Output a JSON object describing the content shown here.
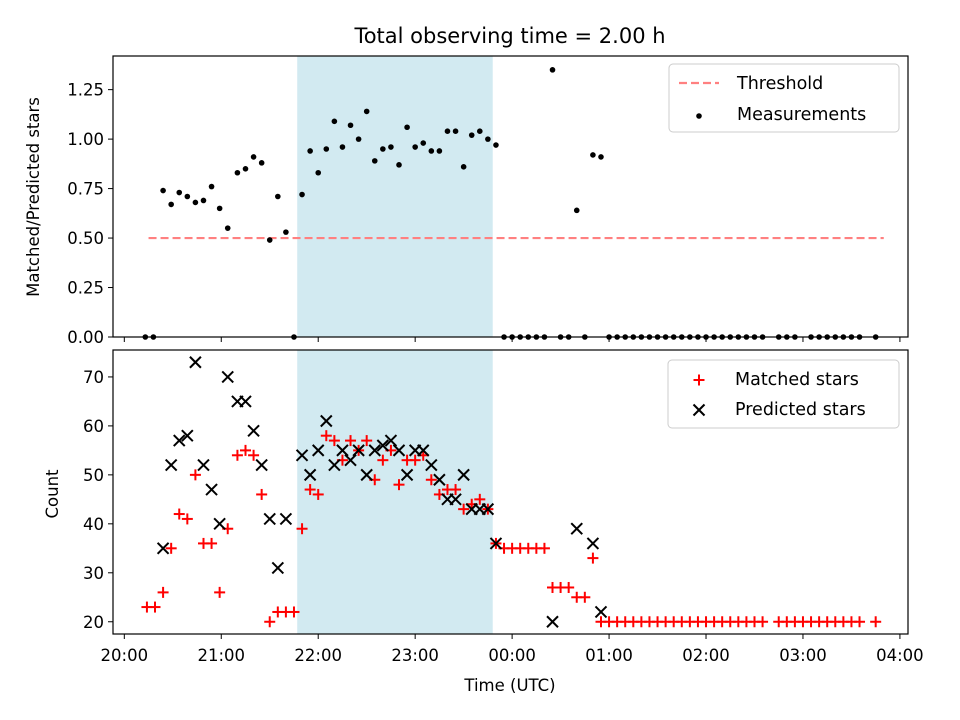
{
  "title": "Total observing time = 2.00 h",
  "colors": {
    "threshold": "#ff8080",
    "measurement": "#000000",
    "matched": "#ff0000",
    "predicted": "#000000",
    "window": "#add8e6"
  },
  "chart_data": [
    {
      "type": "scatter",
      "panel": "top",
      "ylabel": "Matched/Predicted stars",
      "xlabel": "",
      "xlim": [
        "20:00",
        "04:00"
      ],
      "ylim": [
        0,
        1.42
      ],
      "y_ticks": [
        "0.00",
        "0.25",
        "0.50",
        "0.75",
        "1.00",
        "1.25"
      ],
      "highlight_window": [
        "21:47",
        "23:48"
      ],
      "legend_position": "top-right",
      "legend": {
        "threshold": "Threshold",
        "measurements": "Measurements"
      },
      "threshold": {
        "name": "Threshold",
        "value": 0.5,
        "x_range": [
          "20:15",
          "03:50"
        ]
      },
      "series": [
        {
          "name": "Measurements",
          "points": [
            [
              "20:13",
              0
            ],
            [
              "20:18",
              0
            ],
            [
              "20:24",
              0.74
            ],
            [
              "20:29",
              0.67
            ],
            [
              "20:34",
              0.73
            ],
            [
              "20:39",
              0.71
            ],
            [
              "20:44",
              0.68
            ],
            [
              "20:49",
              0.69
            ],
            [
              "20:54",
              0.76
            ],
            [
              "20:59",
              0.65
            ],
            [
              "21:04",
              0.55
            ],
            [
              "21:10",
              0.83
            ],
            [
              "21:15",
              0.85
            ],
            [
              "21:20",
              0.91
            ],
            [
              "21:25",
              0.88
            ],
            [
              "21:30",
              0.49
            ],
            [
              "21:35",
              0.71
            ],
            [
              "21:40",
              0.53
            ],
            [
              "21:45",
              0
            ],
            [
              "21:50",
              0.72
            ],
            [
              "21:55",
              0.94
            ],
            [
              "22:00",
              0.83
            ],
            [
              "22:05",
              0.95
            ],
            [
              "22:10",
              1.09
            ],
            [
              "22:15",
              0.96
            ],
            [
              "22:20",
              1.07
            ],
            [
              "22:25",
              1.0
            ],
            [
              "22:30",
              1.14
            ],
            [
              "22:35",
              0.89
            ],
            [
              "22:40",
              0.95
            ],
            [
              "22:45",
              0.96
            ],
            [
              "22:50",
              0.87
            ],
            [
              "22:55",
              1.06
            ],
            [
              "23:00",
              0.96
            ],
            [
              "23:05",
              0.98
            ],
            [
              "23:10",
              0.94
            ],
            [
              "23:15",
              0.94
            ],
            [
              "23:20",
              1.04
            ],
            [
              "23:25",
              1.04
            ],
            [
              "23:30",
              0.86
            ],
            [
              "23:35",
              1.02
            ],
            [
              "23:40",
              1.04
            ],
            [
              "23:45",
              1.0
            ],
            [
              "23:50",
              0.97
            ],
            [
              "23:55",
              0
            ],
            [
              "00:00",
              0
            ],
            [
              "00:05",
              0
            ],
            [
              "00:10",
              0
            ],
            [
              "00:15",
              0
            ],
            [
              "00:20",
              0
            ],
            [
              "00:25",
              1.35
            ],
            [
              "00:30",
              0
            ],
            [
              "00:35",
              0
            ],
            [
              "00:40",
              0.64
            ],
            [
              "00:45",
              0
            ],
            [
              "00:50",
              0.92
            ],
            [
              "00:55",
              0.91
            ],
            [
              "01:00",
              0
            ],
            [
              "01:05",
              0
            ],
            [
              "01:10",
              0
            ],
            [
              "01:15",
              0
            ],
            [
              "01:20",
              0
            ],
            [
              "01:25",
              0
            ],
            [
              "01:30",
              0
            ],
            [
              "01:35",
              0
            ],
            [
              "01:40",
              0
            ],
            [
              "01:45",
              0
            ],
            [
              "01:50",
              0
            ],
            [
              "01:55",
              0
            ],
            [
              "02:00",
              0
            ],
            [
              "02:05",
              0
            ],
            [
              "02:10",
              0
            ],
            [
              "02:15",
              0
            ],
            [
              "02:20",
              0
            ],
            [
              "02:25",
              0
            ],
            [
              "02:30",
              0
            ],
            [
              "02:35",
              0
            ],
            [
              "02:45",
              0
            ],
            [
              "02:50",
              0
            ],
            [
              "02:55",
              0
            ],
            [
              "03:05",
              0
            ],
            [
              "03:10",
              0
            ],
            [
              "03:15",
              0
            ],
            [
              "03:20",
              0
            ],
            [
              "03:25",
              0
            ],
            [
              "03:30",
              0
            ],
            [
              "03:35",
              0
            ],
            [
              "03:45",
              0
            ]
          ]
        }
      ]
    },
    {
      "type": "scatter",
      "panel": "bottom",
      "ylabel": "Count",
      "xlabel": "Time (UTC)",
      "xlim": [
        "20:00",
        "04:00"
      ],
      "ylim": [
        17.5,
        75.5
      ],
      "y_ticks": [
        "20",
        "30",
        "40",
        "50",
        "60",
        "70"
      ],
      "x_ticks": [
        "20:00",
        "21:00",
        "22:00",
        "23:00",
        "00:00",
        "01:00",
        "02:00",
        "03:00",
        "04:00"
      ],
      "highlight_window": [
        "21:47",
        "23:48"
      ],
      "legend_position": "top-right",
      "legend": {
        "matched": "Matched stars",
        "predicted": "Predicted stars"
      },
      "series": [
        {
          "name": "Matched stars",
          "marker": "plus",
          "points": [
            [
              "20:14",
              23
            ],
            [
              "20:19",
              23
            ],
            [
              "20:24",
              26
            ],
            [
              "20:29",
              35
            ],
            [
              "20:34",
              42
            ],
            [
              "20:39",
              41
            ],
            [
              "20:44",
              50
            ],
            [
              "20:49",
              36
            ],
            [
              "20:54",
              36
            ],
            [
              "20:59",
              26
            ],
            [
              "21:04",
              39
            ],
            [
              "21:10",
              54
            ],
            [
              "21:15",
              55
            ],
            [
              "21:20",
              54
            ],
            [
              "21:25",
              46
            ],
            [
              "21:30",
              20
            ],
            [
              "21:35",
              22
            ],
            [
              "21:40",
              22
            ],
            [
              "21:45",
              22
            ],
            [
              "21:50",
              39
            ],
            [
              "21:55",
              47
            ],
            [
              "22:00",
              46
            ],
            [
              "22:05",
              58
            ],
            [
              "22:10",
              57
            ],
            [
              "22:15",
              53
            ],
            [
              "22:20",
              57
            ],
            [
              "22:25",
              55
            ],
            [
              "22:30",
              57
            ],
            [
              "22:35",
              49
            ],
            [
              "22:40",
              53
            ],
            [
              "22:45",
              55
            ],
            [
              "22:50",
              48
            ],
            [
              "22:55",
              53
            ],
            [
              "23:00",
              53
            ],
            [
              "23:05",
              54
            ],
            [
              "23:10",
              49
            ],
            [
              "23:15",
              46
            ],
            [
              "23:20",
              47
            ],
            [
              "23:25",
              47
            ],
            [
              "23:30",
              43
            ],
            [
              "23:35",
              44
            ],
            [
              "23:40",
              45
            ],
            [
              "23:45",
              43
            ],
            [
              "23:50",
              36
            ],
            [
              "23:55",
              35
            ],
            [
              "00:00",
              35
            ],
            [
              "00:05",
              35
            ],
            [
              "00:10",
              35
            ],
            [
              "00:15",
              35
            ],
            [
              "00:20",
              35
            ],
            [
              "00:25",
              27
            ],
            [
              "00:30",
              27
            ],
            [
              "00:35",
              27
            ],
            [
              "00:40",
              25
            ],
            [
              "00:45",
              25
            ],
            [
              "00:50",
              33
            ],
            [
              "00:55",
              20
            ],
            [
              "01:00",
              20
            ],
            [
              "01:05",
              20
            ],
            [
              "01:10",
              20
            ],
            [
              "01:15",
              20
            ],
            [
              "01:20",
              20
            ],
            [
              "01:25",
              20
            ],
            [
              "01:30",
              20
            ],
            [
              "01:35",
              20
            ],
            [
              "01:40",
              20
            ],
            [
              "01:45",
              20
            ],
            [
              "01:50",
              20
            ],
            [
              "01:55",
              20
            ],
            [
              "02:00",
              20
            ],
            [
              "02:05",
              20
            ],
            [
              "02:10",
              20
            ],
            [
              "02:15",
              20
            ],
            [
              "02:20",
              20
            ],
            [
              "02:25",
              20
            ],
            [
              "02:30",
              20
            ],
            [
              "02:35",
              20
            ],
            [
              "02:45",
              20
            ],
            [
              "02:50",
              20
            ],
            [
              "02:55",
              20
            ],
            [
              "03:00",
              20
            ],
            [
              "03:05",
              20
            ],
            [
              "03:10",
              20
            ],
            [
              "03:15",
              20
            ],
            [
              "03:20",
              20
            ],
            [
              "03:25",
              20
            ],
            [
              "03:30",
              20
            ],
            [
              "03:35",
              20
            ],
            [
              "03:45",
              20
            ]
          ]
        },
        {
          "name": "Predicted stars",
          "marker": "cross",
          "points": [
            [
              "20:24",
              35
            ],
            [
              "20:29",
              52
            ],
            [
              "20:34",
              57
            ],
            [
              "20:39",
              58
            ],
            [
              "20:44",
              73
            ],
            [
              "20:49",
              52
            ],
            [
              "20:54",
              47
            ],
            [
              "20:59",
              40
            ],
            [
              "21:04",
              70
            ],
            [
              "21:10",
              65
            ],
            [
              "21:15",
              65
            ],
            [
              "21:20",
              59
            ],
            [
              "21:25",
              52
            ],
            [
              "21:30",
              41
            ],
            [
              "21:35",
              31
            ],
            [
              "21:40",
              41
            ],
            [
              "21:50",
              54
            ],
            [
              "21:55",
              50
            ],
            [
              "22:00",
              55
            ],
            [
              "22:05",
              61
            ],
            [
              "22:10",
              52
            ],
            [
              "22:15",
              55
            ],
            [
              "22:20",
              53
            ],
            [
              "22:25",
              55
            ],
            [
              "22:30",
              50
            ],
            [
              "22:35",
              55
            ],
            [
              "22:40",
              56
            ],
            [
              "22:45",
              57
            ],
            [
              "22:50",
              55
            ],
            [
              "22:55",
              50
            ],
            [
              "23:00",
              55
            ],
            [
              "23:05",
              55
            ],
            [
              "23:10",
              52
            ],
            [
              "23:15",
              49
            ],
            [
              "23:20",
              45
            ],
            [
              "23:25",
              45
            ],
            [
              "23:30",
              50
            ],
            [
              "23:35",
              43
            ],
            [
              "23:40",
              43
            ],
            [
              "23:45",
              43
            ],
            [
              "23:50",
              36
            ],
            [
              "00:25",
              20
            ],
            [
              "00:40",
              39
            ],
            [
              "00:50",
              36
            ],
            [
              "00:55",
              22
            ]
          ]
        }
      ]
    }
  ]
}
